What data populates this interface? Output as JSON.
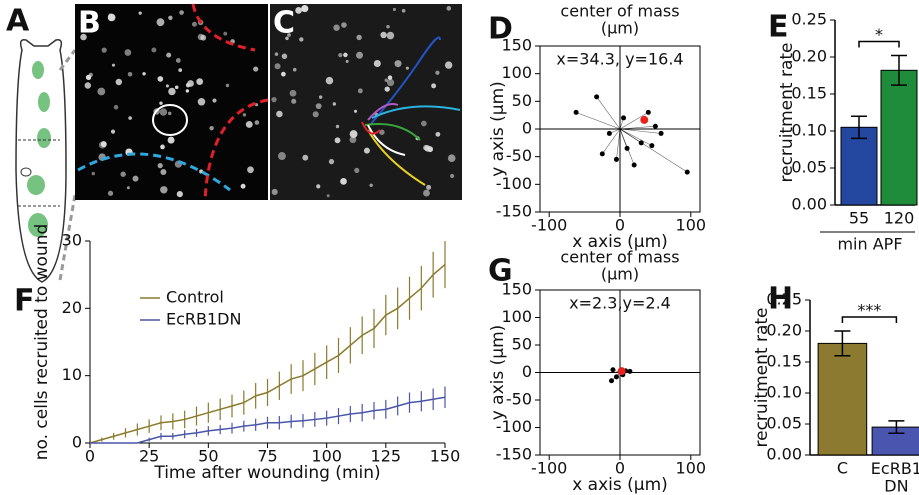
{
  "panels": [
    "A",
    "B",
    "C"
  ],
  "chart_data": [
    {
      "type": "scatter",
      "panel": "D",
      "title": "center of mass",
      "subtitle": "(μm)",
      "annotation": "x=34.3, y=16.4",
      "x_label": "x axis (μm)",
      "y_label": "y axis (μm)",
      "x": [
        -33,
        -62,
        -15,
        -5,
        10,
        30,
        45,
        50,
        58,
        40,
        5,
        20,
        95,
        -25
      ],
      "values": [
        58,
        30,
        -8,
        -55,
        -35,
        -25,
        -30,
        5,
        -8,
        30,
        20,
        -65,
        -78,
        -45
      ],
      "center_x": 34.3,
      "center_y": 16.4,
      "color": "#000000",
      "center_color": "#e8231e",
      "xlim": [
        -113,
        113
      ],
      "ylim": [
        -150,
        150
      ],
      "xticks": [
        -100,
        0,
        100
      ],
      "yticks": [
        150,
        100,
        50,
        0,
        -50,
        -100,
        -150
      ]
    },
    {
      "type": "bar",
      "panel": "E",
      "y_label": "recruitment rate",
      "x_label": "min APF",
      "annotation": "*",
      "categories": [
        "55",
        "120"
      ],
      "values": [
        0.105,
        0.182
      ],
      "errors": [
        0.015,
        0.02
      ],
      "colors": [
        "#2447a0",
        "#1f8c3b"
      ],
      "ylim": [
        0,
        0.25
      ],
      "yticks": [
        {
          "value": 0,
          "label": "0.00"
        },
        0.05,
        {
          "value": 0.1,
          "label": "0.10"
        },
        0.15,
        {
          "value": 0.2,
          "label": "0.20"
        },
        0.25
      ]
    },
    {
      "type": "line",
      "panel": "F",
      "x_label": "Time after wounding (min)",
      "y_label": "no. cells recruited to wound",
      "x": [
        0,
        5,
        10,
        15,
        20,
        25,
        30,
        35,
        40,
        45,
        50,
        55,
        60,
        65,
        70,
        75,
        80,
        85,
        90,
        95,
        100,
        105,
        110,
        115,
        120,
        125,
        130,
        135,
        140,
        145,
        150
      ],
      "series": [
        {
          "name": "Control",
          "color": "#8a7a2c",
          "values": [
            0,
            0.5,
            1,
            1.5,
            2,
            2.5,
            3,
            3.2,
            3.5,
            4,
            4.5,
            5,
            5.5,
            6,
            7,
            7.5,
            8.5,
            9.5,
            10,
            11,
            12,
            13,
            14.5,
            16,
            17,
            19,
            20,
            21.5,
            23,
            25,
            26.5
          ],
          "errors": [
            0,
            0.3,
            0.5,
            0.7,
            0.9,
            1,
            1.1,
            1.2,
            1.3,
            1.4,
            1.5,
            1.6,
            1.7,
            1.8,
            1.9,
            2,
            2.1,
            2.2,
            2.3,
            2.4,
            2.5,
            2.6,
            2.7,
            2.8,
            2.9,
            3,
            3.1,
            3.2,
            3.3,
            3.4,
            3.5
          ]
        },
        {
          "name": "EcRB1DN",
          "color": "#4a55a8",
          "values": [
            0,
            0,
            0,
            0,
            0,
            0.5,
            1,
            1,
            1.3,
            1.5,
            1.8,
            2,
            2.2,
            2.5,
            2.7,
            3,
            3,
            3.2,
            3.3,
            3.5,
            3.7,
            4,
            4.3,
            4.5,
            4.8,
            5,
            5.5,
            6,
            6.2,
            6.5,
            6.8
          ],
          "errors": [
            0,
            0,
            0,
            0,
            0,
            0.3,
            0.5,
            0.5,
            0.6,
            0.6,
            0.7,
            0.7,
            0.8,
            0.8,
            0.9,
            0.9,
            1,
            1,
            1,
            1.1,
            1.1,
            1.2,
            1.2,
            1.3,
            1.3,
            1.4,
            1.4,
            1.5,
            1.5,
            1.6,
            1.6
          ]
        }
      ],
      "xlim": [
        0,
        150
      ],
      "ylim": [
        0,
        30
      ],
      "xticks": [
        0,
        25,
        50,
        75,
        100,
        125,
        150
      ],
      "yticks": [
        0,
        10,
        20,
        30
      ]
    },
    {
      "type": "scatter",
      "panel": "G",
      "title": "center of mass",
      "subtitle": "(μm)",
      "annotation": "x=2.3,y=2.4",
      "x_label": "x axis (μm)",
      "y_label": "y axis (μm)",
      "x": [
        -12,
        -5,
        8,
        -10,
        14,
        4
      ],
      "values": [
        -15,
        -8,
        3,
        5,
        2,
        -4
      ],
      "center_x": 2.3,
      "center_y": 2.4,
      "color": "#000000",
      "center_color": "#e8231e",
      "xlim": [
        -113,
        113
      ],
      "ylim": [
        -150,
        150
      ],
      "xticks": [
        -100,
        0,
        100
      ],
      "yticks": [
        150,
        100,
        50,
        0,
        -50,
        -100,
        -150
      ]
    },
    {
      "type": "bar",
      "panel": "H",
      "y_label": "recruitment rate",
      "annotation": "***",
      "categories": [
        "C",
        "EcRB1\nDN"
      ],
      "values": [
        0.18,
        0.045
      ],
      "errors": [
        0.02,
        0.01
      ],
      "colors": [
        "#8b7a30",
        "#4a55b0"
      ],
      "ylim": [
        0,
        0.25
      ],
      "yticks": [
        {
          "value": 0,
          "label": "0.00"
        },
        0.05,
        {
          "value": 0.1,
          "label": "0.10"
        },
        0.15,
        {
          "value": 0.2,
          "label": "0.20"
        },
        0.25
      ]
    }
  ]
}
